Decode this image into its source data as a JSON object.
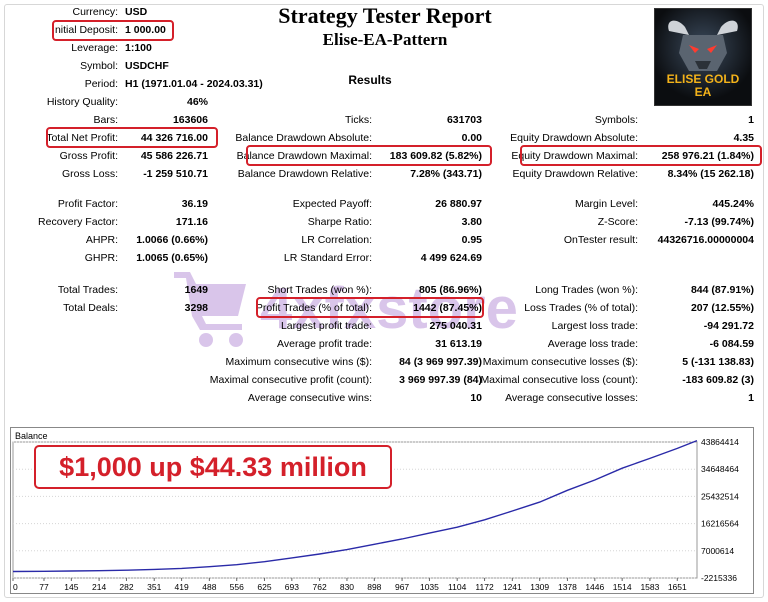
{
  "report": {
    "title": "Strategy Tester Report",
    "subtitle": "Elise-EA-Pattern",
    "results_heading": "Results"
  },
  "settings": [
    {
      "label": "Currency:",
      "value": "USD"
    },
    {
      "label": "Initial Deposit:",
      "value": "1 000.00"
    },
    {
      "label": "Leverage:",
      "value": "1:100"
    },
    {
      "label": "Symbol:",
      "value": "USDCHF"
    },
    {
      "label": "Period:",
      "value": "H1 (1971.01.04 - 2024.03.31)"
    }
  ],
  "stats": {
    "history_quality": {
      "label": "History Quality:",
      "value": "46%"
    },
    "bars": {
      "label": "Bars:",
      "value": "163606"
    },
    "ticks": {
      "label": "Ticks:",
      "value": "631703"
    },
    "symbols": {
      "label": "Symbols:",
      "value": "1"
    },
    "total_net_profit": {
      "label": "Total Net Profit:",
      "value": "44 326 716.00"
    },
    "balance_dd_abs": {
      "label": "Balance Drawdown Absolute:",
      "value": "0.00"
    },
    "equity_dd_abs": {
      "label": "Equity Drawdown Absolute:",
      "value": "4.35"
    },
    "gross_profit": {
      "label": "Gross Profit:",
      "value": "45 586 226.71"
    },
    "balance_dd_max": {
      "label": "Balance Drawdown Maximal:",
      "value": "183 609.82 (5.82%)"
    },
    "equity_dd_max": {
      "label": "Equity Drawdown Maximal:",
      "value": "258 976.21 (1.84%)"
    },
    "gross_loss": {
      "label": "Gross Loss:",
      "value": "-1 259 510.71"
    },
    "balance_dd_rel": {
      "label": "Balance Drawdown Relative:",
      "value": "7.28% (343.71)"
    },
    "equity_dd_rel": {
      "label": "Equity Drawdown Relative:",
      "value": "8.34% (15 262.18)"
    },
    "profit_factor": {
      "label": "Profit Factor:",
      "value": "36.19"
    },
    "expected_payoff": {
      "label": "Expected Payoff:",
      "value": "26 880.97"
    },
    "margin_level": {
      "label": "Margin Level:",
      "value": "445.24%"
    },
    "recovery_factor": {
      "label": "Recovery Factor:",
      "value": "171.16"
    },
    "sharpe_ratio": {
      "label": "Sharpe Ratio:",
      "value": "3.80"
    },
    "z_score": {
      "label": "Z-Score:",
      "value": "-7.13 (99.74%)"
    },
    "ahpr": {
      "label": "AHPR:",
      "value": "1.0066 (0.66%)"
    },
    "lr_correlation": {
      "label": "LR Correlation:",
      "value": "0.95"
    },
    "ontester_result": {
      "label": "OnTester result:",
      "value": "44326716.00000004"
    },
    "ghpr": {
      "label": "GHPR:",
      "value": "1.0065 (0.65%)"
    },
    "lr_std_error": {
      "label": "LR Standard Error:",
      "value": "4 499 624.69"
    },
    "total_trades": {
      "label": "Total Trades:",
      "value": "1649"
    },
    "short_trades": {
      "label": "Short Trades (won %):",
      "value": "805 (86.96%)"
    },
    "long_trades": {
      "label": "Long Trades (won %):",
      "value": "844 (87.91%)"
    },
    "total_deals": {
      "label": "Total Deals:",
      "value": "3298"
    },
    "profit_trades": {
      "label": "Profit Trades (% of total):",
      "value": "1442 (87.45%)"
    },
    "loss_trades": {
      "label": "Loss Trades (% of total):",
      "value": "207 (12.55%)"
    },
    "largest_profit": {
      "label": "Largest profit trade:",
      "value": "275 040.31"
    },
    "largest_loss": {
      "label": "Largest loss trade:",
      "value": "-94 291.72"
    },
    "avg_profit": {
      "label": "Average profit trade:",
      "value": "31 613.19"
    },
    "avg_loss": {
      "label": "Average loss trade:",
      "value": "-6 084.59"
    },
    "max_consec_wins": {
      "label": "Maximum consecutive wins ($):",
      "value": "84 (3 969 997.39)"
    },
    "max_consec_losses": {
      "label": "Maximum consecutive losses ($):",
      "value": "5 (-131 138.83)"
    },
    "maximal_consec_profit": {
      "label": "Maximal consecutive profit (count):",
      "value": "3 969 997.39 (84)"
    },
    "maximal_consec_loss": {
      "label": "Maximal consecutive loss (count):",
      "value": "-183 609.82 (3)"
    },
    "avg_consec_wins": {
      "label": "Average consecutive wins:",
      "value": "10"
    },
    "avg_consec_losses": {
      "label": "Average consecutive losses:",
      "value": "1"
    }
  },
  "logo": {
    "line1": "ELISE GOLD",
    "line2": "EA"
  },
  "watermark": {
    "text": "4xfxstore"
  },
  "promo": {
    "text": "$1,000 up $44.33 million"
  },
  "colors": {
    "highlight": "#d4202a",
    "balance_line": "#2a2aa8",
    "watermark": "#8a4dbf"
  },
  "chart_data": {
    "type": "line",
    "title": "Balance",
    "x_ticks": [
      "0",
      "77",
      "145",
      "214",
      "282",
      "351",
      "419",
      "488",
      "556",
      "625",
      "693",
      "762",
      "830",
      "898",
      "967",
      "1035",
      "1104",
      "1172",
      "1241",
      "1309",
      "1378",
      "1446",
      "1514",
      "1583",
      "1651"
    ],
    "y_ticks": [
      "43864414",
      "34648464",
      "25432514",
      "16216564",
      "7000614",
      "-2215336"
    ],
    "ylim": [
      -2215336,
      43864414
    ],
    "xlim": [
      0,
      1700
    ],
    "series": [
      {
        "x": [
          0,
          77,
          145,
          214,
          282,
          351,
          419,
          488,
          556,
          625,
          693,
          762,
          830,
          898,
          967,
          1035,
          1104,
          1172,
          1241,
          1309,
          1378,
          1446,
          1514,
          1583,
          1651,
          1700
        ],
        "y": [
          1000,
          60000,
          150000,
          250000,
          420000,
          700000,
          1050000,
          1600000,
          2300000,
          3300000,
          4600000,
          5900000,
          7400000,
          9200000,
          11000000,
          13000000,
          15000000,
          17500000,
          20500000,
          23500000,
          27500000,
          31000000,
          35000000,
          38300000,
          41700000,
          44326716
        ]
      }
    ]
  }
}
